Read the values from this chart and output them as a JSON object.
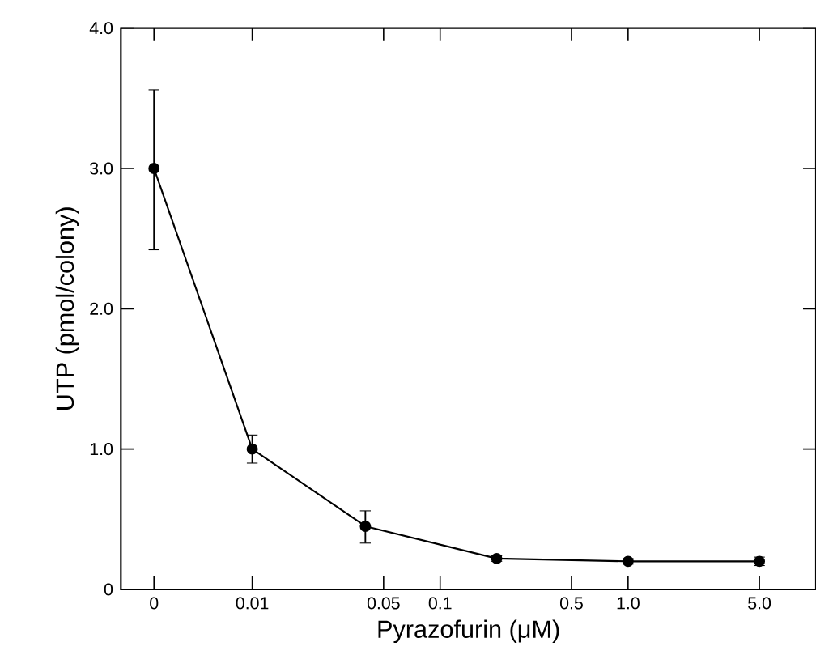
{
  "chart_data": {
    "type": "line",
    "xlabel": "Pyrazofurin (μM)",
    "ylabel": "UTP (pmol/colony)",
    "log": "x",
    "x": [
      0.003,
      0.01,
      0.04,
      0.2,
      1.0,
      5.0
    ],
    "series": [
      {
        "color": "#000000",
        "values": [
          3.0,
          1.0,
          0.45,
          0.22,
          0.2,
          0.2
        ],
        "errors": [
          [
            2.42,
            3.56
          ],
          [
            0.9,
            1.1
          ],
          [
            0.33,
            0.56
          ],
          [
            0.2,
            0.24
          ],
          [
            0.18,
            0.22
          ],
          [
            0.17,
            0.23
          ]
        ]
      }
    ],
    "xlim": [
      0.002,
      10
    ],
    "ylim": [
      0,
      4
    ],
    "xticks": [
      {
        "value": 0.003,
        "label": "0"
      },
      {
        "value": 0.01,
        "label": "0.01"
      },
      0.05,
      0.1,
      0.5,
      {
        "value": 1,
        "label": "1.0"
      },
      {
        "value": 5,
        "label": "5.0"
      }
    ],
    "yticks": [
      0,
      {
        "value": 1,
        "label": "1.0"
      },
      {
        "value": 2,
        "label": "2.0"
      },
      {
        "value": 3,
        "label": "3.0"
      },
      {
        "value": 4,
        "label": "4.0"
      }
    ],
    "marker": "circle",
    "line_style": "solid"
  }
}
